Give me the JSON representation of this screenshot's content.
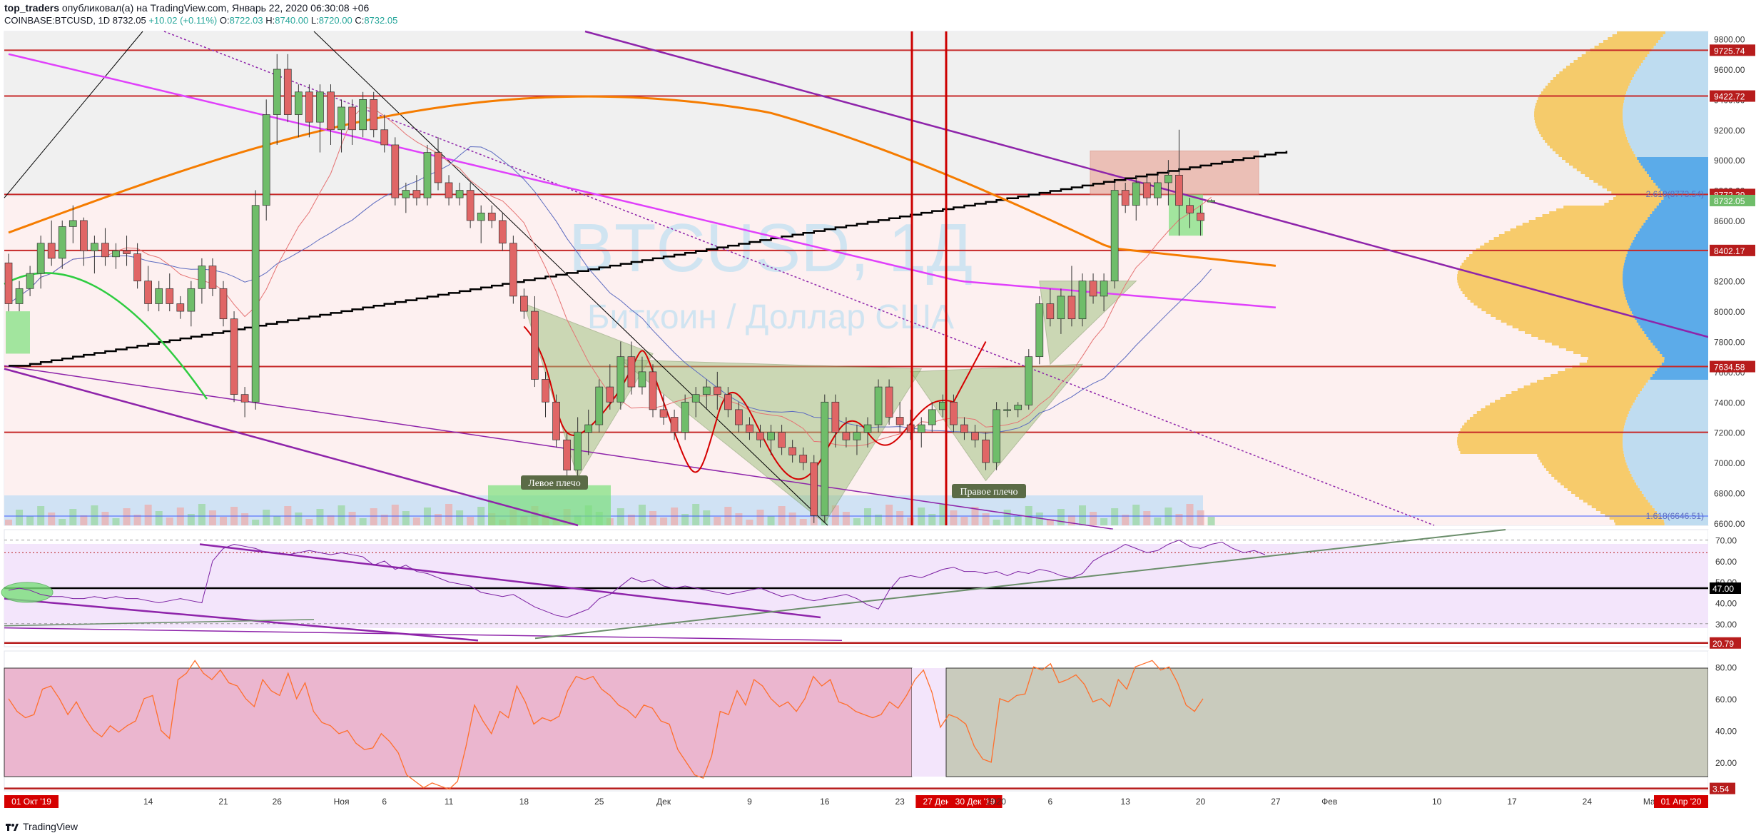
{
  "header": {
    "author": "top_traders",
    "published_text": "опубликовал(а) на TradingView.com, Январь 22, 2020 06:30:08 +06",
    "symbol": "COINBASE:BTCUSD, 1D",
    "last": "8732.05",
    "change": "+10.02 (+0.11%)",
    "o_label": "O:",
    "o_value": "8722.03",
    "h_label": "H:",
    "h_value": "8740.00",
    "l_label": "L:",
    "l_value": "8720.00",
    "c_label": "C:",
    "c_value": "8732.05"
  },
  "watermark": {
    "symbol": "BTCUSD, 1Д",
    "name": "Биткоин / Доллар США"
  },
  "colors": {
    "bull": "#6fbd6a",
    "bear": "#e06666",
    "accent": "#b71c1c",
    "rsi_fill": "#f3e5fb",
    "price_bg": "#fdf0f0"
  },
  "annotations": {
    "left_shoulder": "Левое плечо",
    "right_shoulder": "Правое плечо"
  },
  "footer": {
    "brand": "TradingView"
  },
  "chart_data": {
    "type": "candlestick",
    "price_axis": {
      "ticks": [
        "9800.00",
        "9600.00",
        "9400.00",
        "9200.00",
        "9000.00",
        "8800.00",
        "8600.00",
        "8400.00",
        "8200.00",
        "8000.00",
        "7800.00",
        "7600.00",
        "7400.00",
        "7200.00",
        "7000.00",
        "6800.00",
        "6600.00"
      ],
      "ylim": [
        6585,
        9850
      ],
      "level_labels": [
        {
          "value": 9725.74,
          "text": "9725.74"
        },
        {
          "value": 9422.72,
          "text": "9422.72"
        },
        {
          "value": 8772.29,
          "text": "8772.29"
        },
        {
          "value": 8732.05,
          "text": "8732.05"
        },
        {
          "value": 8402.17,
          "text": "8402.17"
        },
        {
          "value": 7634.58,
          "text": "7634.58"
        }
      ],
      "fib_labels": [
        {
          "value": 8773.54,
          "text": "2.618(8773.54)"
        },
        {
          "value": 6646.51,
          "text": "1.618(6646.51)"
        }
      ]
    },
    "horizontal_levels": [
      9725.74,
      9422.72,
      8772.29,
      8402.17,
      7634.58,
      7200
    ],
    "rsi": {
      "ticks": [
        "70.00",
        "60.00",
        "50.00",
        "40.00",
        "30.00"
      ],
      "ylim": [
        19,
        75
      ],
      "level_labels": [
        {
          "value": 47.0,
          "text": "47.00"
        },
        {
          "value": 20.79,
          "text": "20.79"
        }
      ],
      "values": [
        46,
        47,
        46,
        44,
        43,
        43,
        42,
        42,
        43,
        42,
        43,
        42,
        42,
        41,
        40,
        41,
        42,
        41,
        40,
        60,
        66,
        68,
        67,
        66,
        64,
        64,
        63,
        64,
        65,
        64,
        63,
        64,
        63,
        62,
        58,
        60,
        56,
        58,
        55,
        54,
        52,
        50,
        49,
        48,
        45,
        44,
        43,
        44,
        41,
        38,
        36,
        34,
        33,
        35,
        37,
        42,
        44,
        48,
        52,
        50,
        51,
        48,
        47,
        48,
        47,
        46,
        45,
        44,
        45,
        46,
        47,
        45,
        43,
        44,
        42,
        41,
        42,
        43,
        44,
        42,
        39,
        37,
        46,
        52,
        53,
        52,
        54,
        56,
        57,
        55,
        55,
        54,
        55,
        53,
        55,
        54,
        56,
        55,
        53,
        52,
        54,
        60,
        63,
        65,
        68,
        66,
        64,
        65,
        68,
        70,
        67,
        66,
        68,
        69,
        66,
        64,
        65,
        63
      ]
    },
    "stoch": {
      "ticks": [
        "80.00",
        "60.00",
        "40.00",
        "20.00"
      ],
      "ylim": [
        2,
        90
      ],
      "level_labels": [
        {
          "value": 3.54,
          "text": "3.54"
        }
      ],
      "values": [
        60,
        52,
        48,
        50,
        66,
        68,
        60,
        50,
        58,
        48,
        40,
        36,
        43,
        39,
        43,
        46,
        60,
        62,
        40,
        35,
        72,
        76,
        84,
        76,
        72,
        78,
        70,
        68,
        60,
        55,
        72,
        65,
        62,
        76,
        60,
        70,
        52,
        45,
        43,
        38,
        40,
        32,
        28,
        29,
        38,
        33,
        26,
        12,
        8,
        4,
        7,
        5,
        3,
        8,
        30,
        56,
        46,
        38,
        52,
        48,
        68,
        58,
        44,
        48,
        46,
        49,
        65,
        74,
        72,
        74,
        66,
        62,
        56,
        53,
        48,
        56,
        54,
        46,
        44,
        28,
        20,
        12,
        10,
        24,
        52,
        50,
        65,
        56,
        72,
        68,
        60,
        55,
        58,
        52,
        60,
        74,
        68,
        72,
        58,
        56,
        52,
        50,
        48,
        50,
        58,
        54,
        62,
        72,
        78,
        64,
        42,
        50,
        48,
        44,
        30,
        22,
        20,
        60,
        58,
        62,
        63,
        80,
        78,
        82,
        70,
        72,
        75,
        69,
        58,
        60,
        55,
        72,
        66,
        80,
        82,
        84,
        78,
        80,
        70,
        56,
        52,
        60
      ]
    },
    "x_axis": {
      "ticks": [
        {
          "i": 0,
          "text": "01 Окт '19",
          "badge": true
        },
        {
          "i": 13,
          "text": "14"
        },
        {
          "i": 20,
          "text": "21"
        },
        {
          "i": 25,
          "text": "26"
        },
        {
          "i": 31,
          "text": "Ноя"
        },
        {
          "i": 35,
          "text": "6"
        },
        {
          "i": 41,
          "text": "11"
        },
        {
          "i": 48,
          "text": "18"
        },
        {
          "i": 55,
          "text": "25"
        },
        {
          "i": 61,
          "text": "Дек"
        },
        {
          "i": 69,
          "text": "9"
        },
        {
          "i": 76,
          "text": "16"
        },
        {
          "i": 83,
          "text": "23"
        },
        {
          "i": 87,
          "text": "27 Дек '19",
          "badge": true
        },
        {
          "i": 90,
          "text": "30 Дек '19",
          "badge": true
        },
        {
          "i": 92,
          "text": "2020"
        },
        {
          "i": 97,
          "text": "6"
        },
        {
          "i": 104,
          "text": "13"
        },
        {
          "i": 111,
          "text": "20"
        },
        {
          "i": 118,
          "text": "27"
        },
        {
          "i": 123,
          "text": "Фев"
        },
        {
          "i": 133,
          "text": "10"
        },
        {
          "i": 140,
          "text": "17"
        },
        {
          "i": 147,
          "text": "24"
        },
        {
          "i": 153,
          "text": "Мар"
        },
        {
          "i": 159,
          "text": "01 Апр '20",
          "badge": true
        }
      ]
    },
    "ohlc": [
      [
        8320,
        8380,
        8000,
        8050
      ],
      [
        8050,
        8200,
        8000,
        8150
      ],
      [
        8150,
        8300,
        8100,
        8250
      ],
      [
        8250,
        8500,
        8150,
        8450
      ],
      [
        8450,
        8600,
        8300,
        8350
      ],
      [
        8350,
        8600,
        8280,
        8560
      ],
      [
        8560,
        8700,
        8450,
        8600
      ],
      [
        8600,
        8620,
        8300,
        8400
      ],
      [
        8400,
        8500,
        8250,
        8450
      ],
      [
        8450,
        8550,
        8300,
        8360
      ],
      [
        8360,
        8450,
        8280,
        8400
      ],
      [
        8400,
        8500,
        8300,
        8380
      ],
      [
        8380,
        8450,
        8150,
        8200
      ],
      [
        8200,
        8300,
        8000,
        8050
      ],
      [
        8050,
        8200,
        8000,
        8150
      ],
      [
        8150,
        8250,
        8000,
        8050
      ],
      [
        8050,
        8100,
        7950,
        8000
      ],
      [
        8000,
        8200,
        7900,
        8150
      ],
      [
        8150,
        8350,
        8050,
        8300
      ],
      [
        8300,
        8350,
        8100,
        8150
      ],
      [
        8150,
        8200,
        7900,
        7950
      ],
      [
        7950,
        8000,
        7400,
        7450
      ],
      [
        7450,
        7500,
        7300,
        7400
      ],
      [
        7400,
        8800,
        7350,
        8700
      ],
      [
        8700,
        9400,
        8600,
        9300
      ],
      [
        9300,
        9700,
        9100,
        9600
      ],
      [
        9600,
        9700,
        9250,
        9300
      ],
      [
        9300,
        9500,
        9150,
        9450
      ],
      [
        9450,
        9500,
        9150,
        9250
      ],
      [
        9250,
        9500,
        9050,
        9450
      ],
      [
        9450,
        9500,
        9100,
        9200
      ],
      [
        9200,
        9400,
        9050,
        9350
      ],
      [
        9350,
        9400,
        9100,
        9200
      ],
      [
        9200,
        9450,
        9150,
        9400
      ],
      [
        9400,
        9450,
        9150,
        9200
      ],
      [
        9200,
        9300,
        9050,
        9100
      ],
      [
        9100,
        9150,
        8700,
        8750
      ],
      [
        8750,
        8850,
        8650,
        8800
      ],
      [
        8800,
        8900,
        8700,
        8750
      ],
      [
        8750,
        9100,
        8700,
        9050
      ],
      [
        9050,
        9150,
        8800,
        8850
      ],
      [
        8850,
        8900,
        8700,
        8750
      ],
      [
        8750,
        8850,
        8700,
        8800
      ],
      [
        8800,
        8850,
        8550,
        8600
      ],
      [
        8600,
        8700,
        8450,
        8650
      ],
      [
        8650,
        8700,
        8550,
        8600
      ],
      [
        8600,
        8650,
        8400,
        8450
      ],
      [
        8450,
        8500,
        8050,
        8100
      ],
      [
        8100,
        8150,
        7950,
        8000
      ],
      [
        8000,
        8100,
        7500,
        7550
      ],
      [
        7550,
        7600,
        7300,
        7400
      ],
      [
        7400,
        7450,
        7100,
        7150
      ],
      [
        7150,
        7200,
        6900,
        6950
      ],
      [
        6950,
        7300,
        6850,
        7200
      ],
      [
        7200,
        7350,
        7050,
        7250
      ],
      [
        7250,
        7550,
        7200,
        7500
      ],
      [
        7500,
        7650,
        7350,
        7400
      ],
      [
        7400,
        7800,
        7350,
        7700
      ],
      [
        7700,
        7800,
        7450,
        7500
      ],
      [
        7500,
        7700,
        7450,
        7600
      ],
      [
        7600,
        7650,
        7300,
        7350
      ],
      [
        7350,
        7450,
        7250,
        7300
      ],
      [
        7300,
        7350,
        7150,
        7200
      ],
      [
        7200,
        7450,
        7150,
        7400
      ],
      [
        7400,
        7500,
        7300,
        7450
      ],
      [
        7450,
        7550,
        7350,
        7500
      ],
      [
        7500,
        7600,
        7350,
        7450
      ],
      [
        7450,
        7500,
        7300,
        7350
      ],
      [
        7350,
        7400,
        7200,
        7250
      ],
      [
        7250,
        7300,
        7150,
        7200
      ],
      [
        7200,
        7250,
        7100,
        7150
      ],
      [
        7150,
        7250,
        7050,
        7200
      ],
      [
        7200,
        7250,
        7050,
        7100
      ],
      [
        7100,
        7150,
        7000,
        7050
      ],
      [
        7050,
        7100,
        6950,
        7000
      ],
      [
        7000,
        7050,
        6600,
        6650
      ],
      [
        6650,
        7450,
        6600,
        7400
      ],
      [
        7400,
        7450,
        7100,
        7200
      ],
      [
        7200,
        7300,
        7100,
        7150
      ],
      [
        7150,
        7250,
        7050,
        7200
      ],
      [
        7200,
        7300,
        7100,
        7250
      ],
      [
        7250,
        7550,
        7200,
        7500
      ],
      [
        7500,
        7550,
        7250,
        7300
      ],
      [
        7300,
        7400,
        7200,
        7250
      ],
      [
        7250,
        7350,
        7150,
        7200
      ],
      [
        7200,
        7300,
        7100,
        7250
      ],
      [
        7250,
        7400,
        7200,
        7350
      ],
      [
        7350,
        7450,
        7300,
        7400
      ],
      [
        7400,
        7450,
        7200,
        7250
      ],
      [
        7250,
        7300,
        7150,
        7200
      ],
      [
        7200,
        7250,
        7100,
        7150
      ],
      [
        7150,
        7200,
        6950,
        7000
      ],
      [
        7000,
        7400,
        6950,
        7350
      ],
      [
        7350,
        7400,
        7300,
        7350
      ],
      [
        7350,
        7400,
        7300,
        7380
      ],
      [
        7380,
        7750,
        7350,
        7700
      ],
      [
        7700,
        8100,
        7650,
        8050
      ],
      [
        8050,
        8150,
        7900,
        7950
      ],
      [
        7950,
        8150,
        7850,
        8100
      ],
      [
        8100,
        8300,
        7900,
        7950
      ],
      [
        7950,
        8250,
        7900,
        8200
      ],
      [
        8200,
        8250,
        8050,
        8100
      ],
      [
        8100,
        8250,
        8000,
        8200
      ],
      [
        8200,
        8850,
        8150,
        8800
      ],
      [
        8800,
        8850,
        8650,
        8700
      ],
      [
        8700,
        8900,
        8600,
        8850
      ],
      [
        8850,
        8900,
        8700,
        8750
      ],
      [
        8750,
        8900,
        8700,
        8850
      ],
      [
        8850,
        9000,
        8700,
        8900
      ],
      [
        8900,
        9200,
        8500,
        8700
      ],
      [
        8700,
        8750,
        8550,
        8650
      ],
      [
        8650,
        8700,
        8500,
        8600
      ],
      [
        8722.03,
        8740,
        8720,
        8732.05
      ]
    ]
  }
}
